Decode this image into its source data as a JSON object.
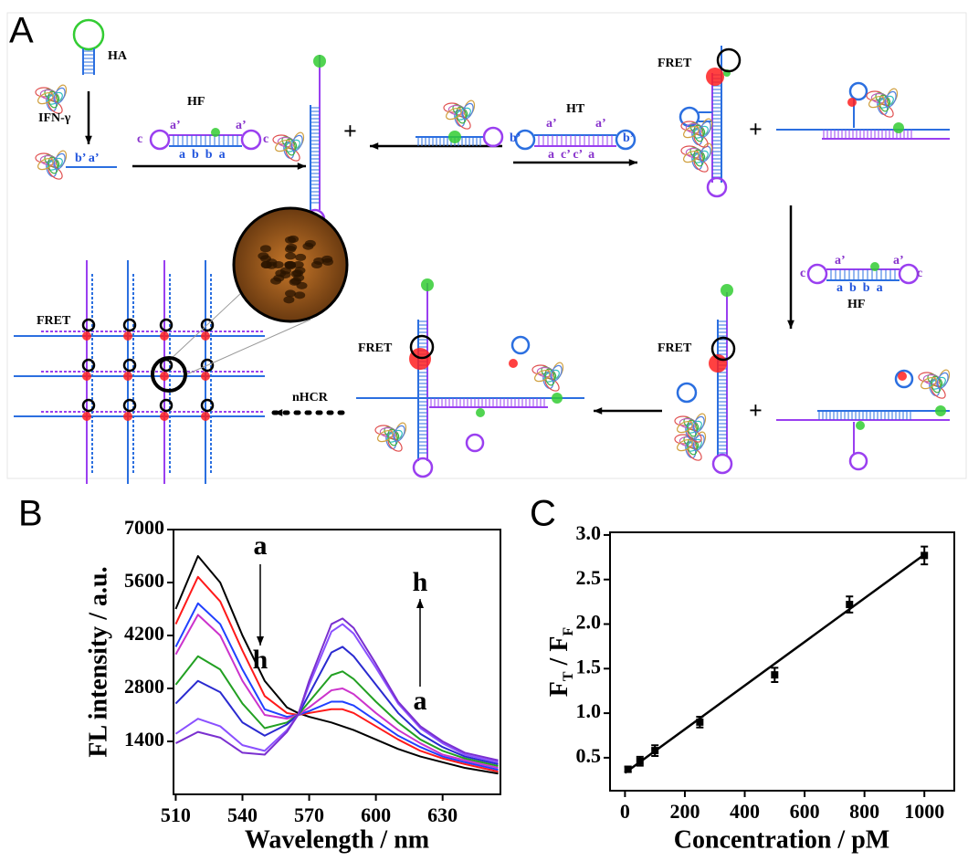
{
  "diagram": {
    "panel_label": "A",
    "labels": [
      "HA",
      "IFN-γ",
      "b’ a’",
      "HF",
      "c",
      "a’",
      "a’",
      "c",
      "a  b  b  a",
      "+",
      "HT",
      "b’",
      "a’",
      "a’",
      "b’",
      "a  c’ c’  a",
      "FRET",
      "+",
      "HF",
      "c",
      "a’",
      "a’",
      "c",
      "a  b  b  a",
      "FRET",
      "FRET",
      "nHCR",
      "FRET",
      "+"
    ]
  },
  "chart_data": [
    {
      "type": "line",
      "panel_label": "B",
      "xlabel": "Wavelength / nm",
      "ylabel": "FL intensity / a.u.",
      "x": [
        510,
        520,
        530,
        540,
        550,
        560,
        565,
        570,
        580,
        585,
        590,
        600,
        610,
        620,
        630,
        640,
        655
      ],
      "xlim": [
        509,
        656
      ],
      "ylim": [
        0,
        7000
      ],
      "xticks": [
        510,
        540,
        570,
        600,
        630
      ],
      "yticks": [
        1400,
        2800,
        4200,
        5600,
        7000
      ],
      "annotations": [
        "a",
        "h",
        "h",
        "a"
      ],
      "series": [
        {
          "color": "#000000",
          "values": [
            4900,
            6300,
            5600,
            4200,
            3000,
            2300,
            2150,
            2050,
            1900,
            1800,
            1700,
            1450,
            1200,
            1000,
            850,
            700,
            550
          ]
        },
        {
          "color": "#ff1a1a",
          "values": [
            4500,
            5750,
            5100,
            3800,
            2600,
            2150,
            2100,
            2150,
            2250,
            2250,
            2150,
            1800,
            1450,
            1150,
            950,
            800,
            600
          ]
        },
        {
          "color": "#2040ff",
          "values": [
            3900,
            5050,
            4500,
            3300,
            2250,
            2050,
            2100,
            2200,
            2450,
            2450,
            2350,
            1950,
            1550,
            1250,
            1000,
            850,
            650
          ]
        },
        {
          "color": "#cc33cc",
          "values": [
            3700,
            4750,
            4200,
            3000,
            2100,
            2000,
            2100,
            2300,
            2750,
            2800,
            2650,
            2150,
            1700,
            1350,
            1050,
            900,
            700
          ]
        },
        {
          "color": "#22a022",
          "values": [
            2900,
            3650,
            3300,
            2400,
            1750,
            1900,
            2100,
            2450,
            3150,
            3250,
            3050,
            2450,
            1900,
            1450,
            1150,
            950,
            750
          ]
        },
        {
          "color": "#2a2ad0",
          "values": [
            2400,
            3000,
            2700,
            1900,
            1550,
            1850,
            2100,
            2650,
            3750,
            3900,
            3650,
            2900,
            2150,
            1600,
            1250,
            1000,
            800
          ]
        },
        {
          "color": "#8a50ff",
          "values": [
            1600,
            2000,
            1800,
            1300,
            1150,
            1700,
            2100,
            2900,
            4300,
            4500,
            4250,
            3350,
            2400,
            1750,
            1350,
            1050,
            850
          ]
        },
        {
          "color": "#7a2fd0",
          "values": [
            1350,
            1650,
            1500,
            1100,
            1050,
            1650,
            2100,
            3000,
            4500,
            4650,
            4400,
            3450,
            2450,
            1800,
            1400,
            1100,
            900
          ]
        }
      ]
    },
    {
      "type": "scatter",
      "panel_label": "C",
      "xlabel": "Concentration / pM",
      "ylabel": [
        "F",
        "T",
        " / F",
        "F"
      ],
      "x": [
        10,
        50,
        100,
        250,
        500,
        750,
        1000
      ],
      "xlim": [
        -50,
        1100
      ],
      "ylim": [
        0.13,
        3.03
      ],
      "xticks": [
        0,
        200,
        400,
        600,
        800,
        1000
      ],
      "yticks": [
        0.5,
        {
          "value": 1,
          "label": "1.0"
        },
        1.5,
        {
          "value": 2,
          "label": "2.0"
        },
        2.5,
        {
          "value": 3,
          "label": "3.0"
        }
      ],
      "series": [
        {
          "color": "#000000",
          "values": [
            0.37,
            0.46,
            0.58,
            0.9,
            1.43,
            2.22,
            2.77
          ],
          "errors": [
            0.03,
            0.05,
            0.06,
            0.06,
            0.08,
            0.09,
            0.1
          ]
        }
      ],
      "fit": {
        "color": "#000000",
        "x": [
          0,
          1000
        ],
        "values": [
          0.33,
          2.78
        ]
      }
    }
  ]
}
